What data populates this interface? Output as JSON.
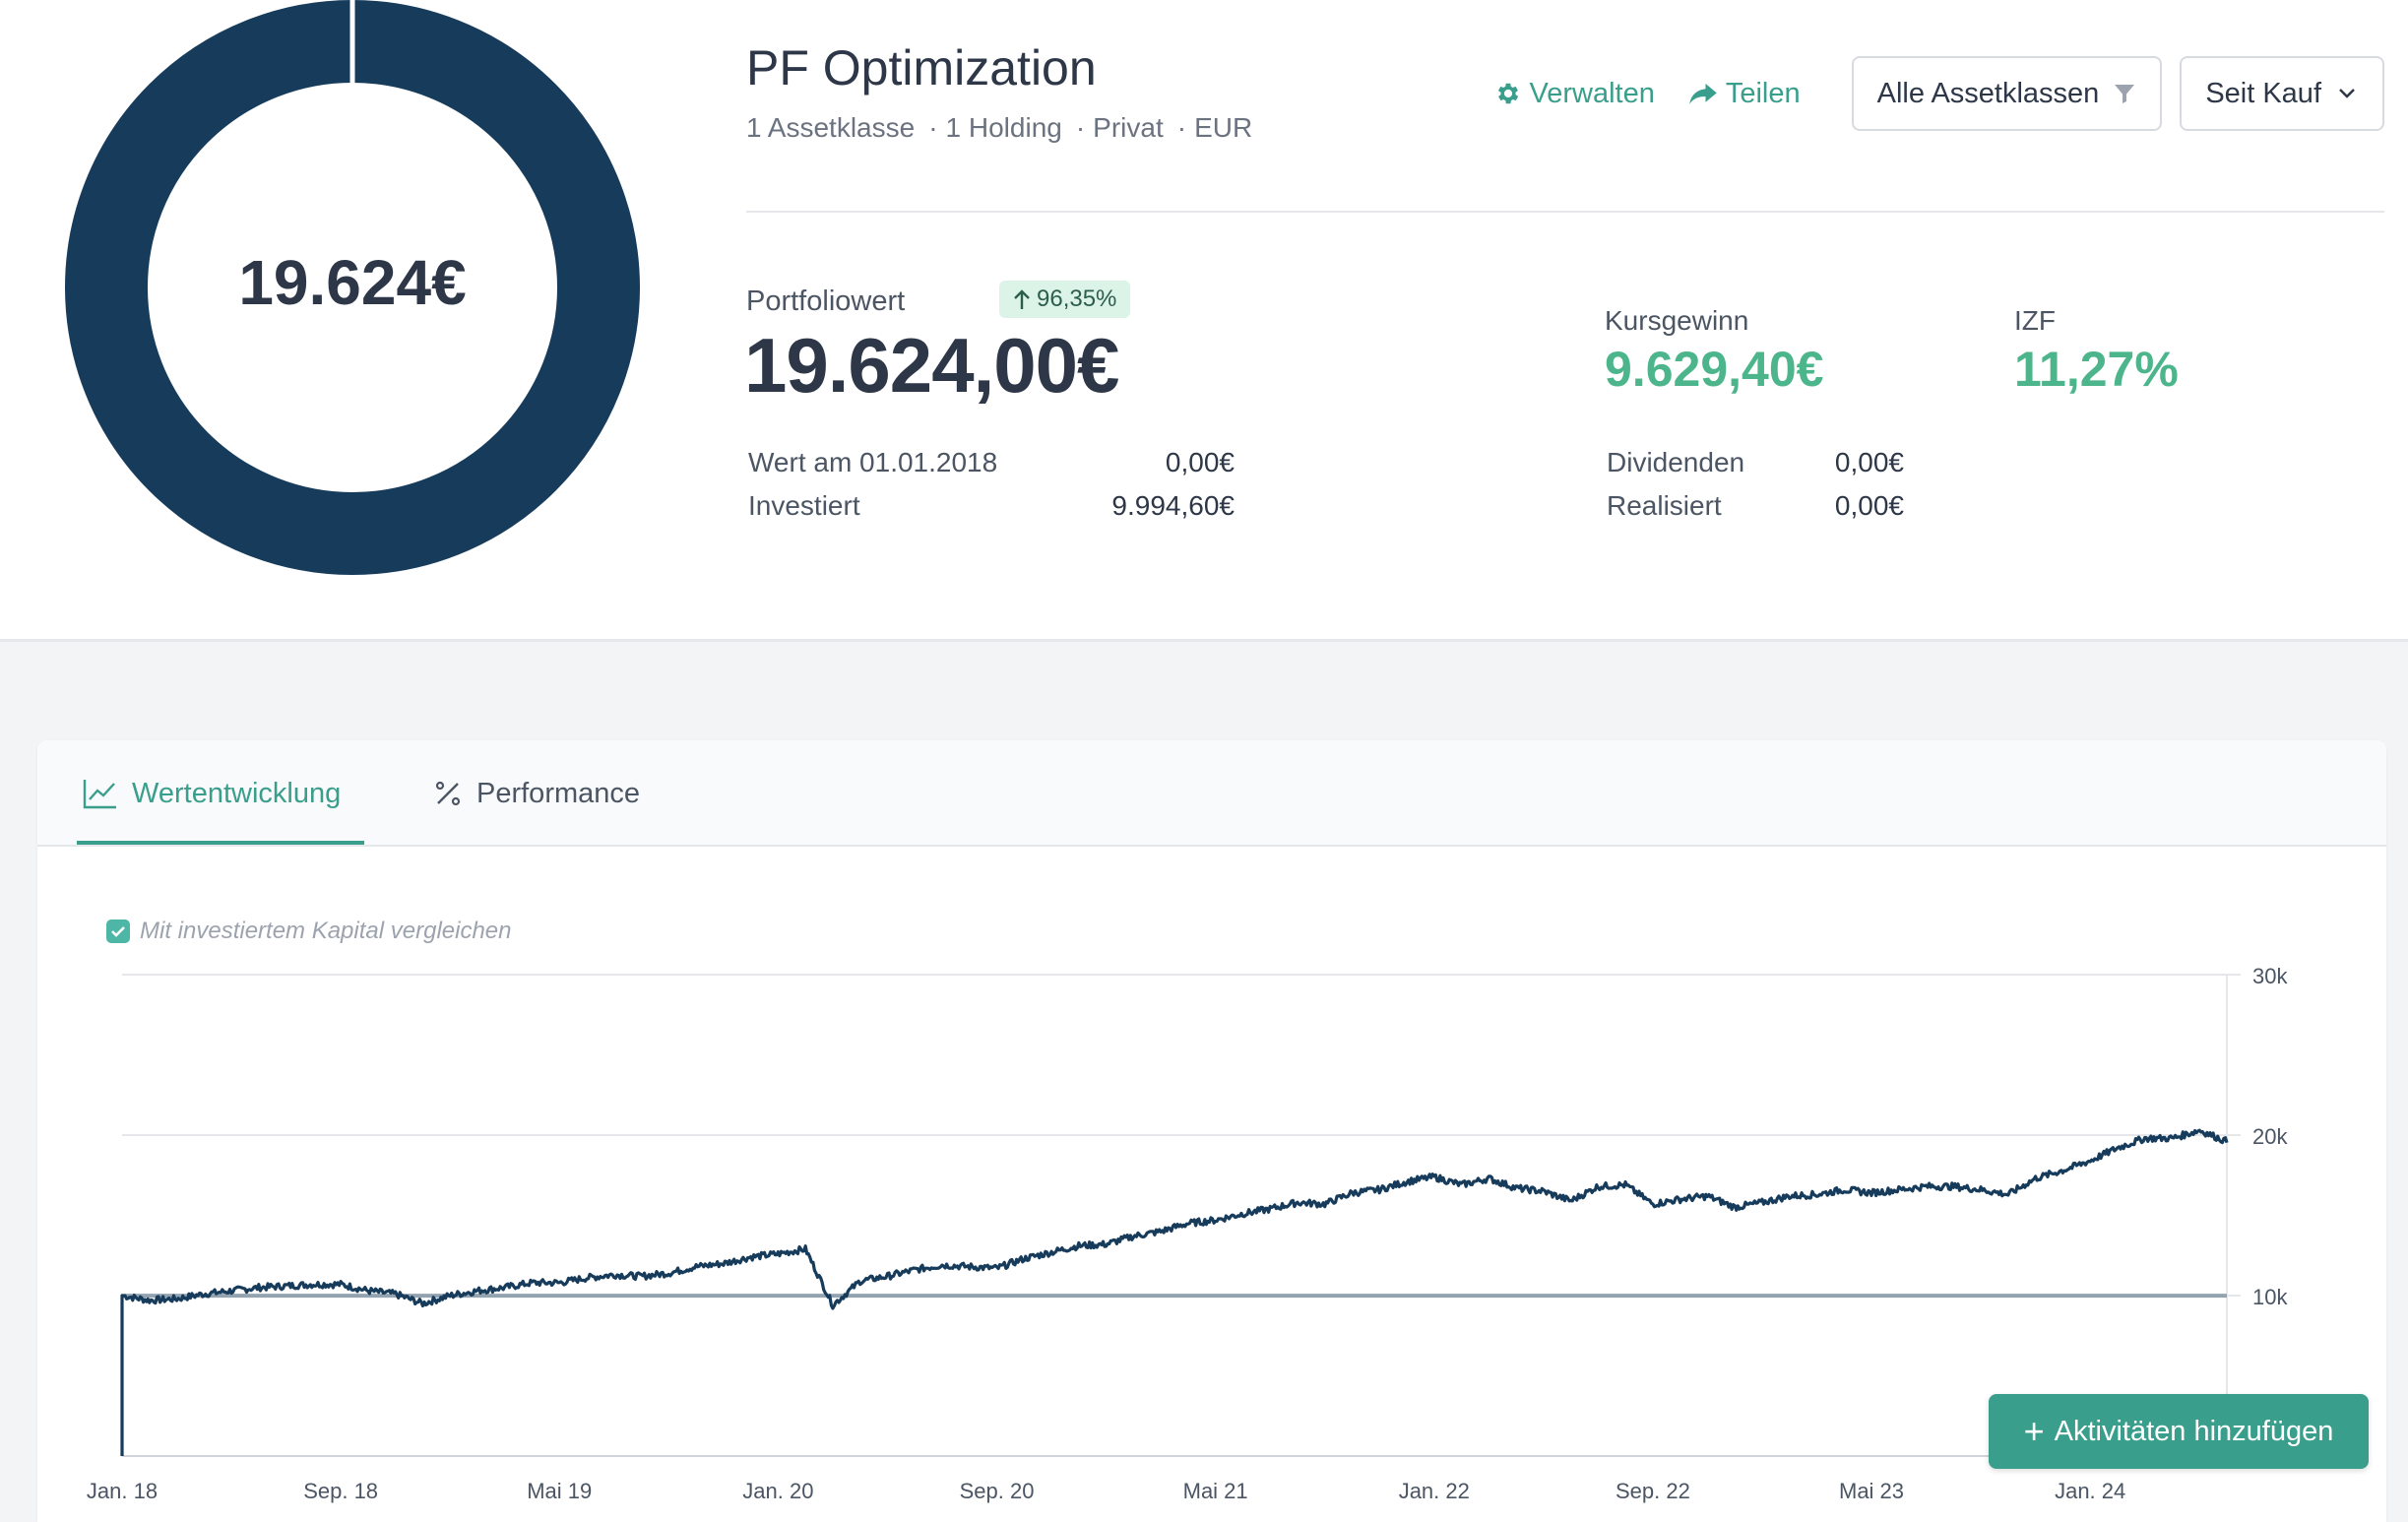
{
  "header": {
    "donut_center": "19.624€",
    "donut_color": "#173b5b",
    "title": "PF Optimization",
    "subtitle": [
      "1 Assetklasse",
      "1 Holding",
      "Privat",
      "EUR"
    ],
    "separator": "·"
  },
  "actions": {
    "manage_label": "Verwalten",
    "share_label": "Teilen",
    "asset_filter_label": "Alle Assetklassen",
    "period_label": "Seit Kauf"
  },
  "summary": {
    "portfolio_label": "Portfoliowert",
    "portfolio_change": "96,35%",
    "portfolio_value": "19.624,00€",
    "start_label": "Wert am 01.01.2018",
    "start_value": "0,00€",
    "invested_label": "Investiert",
    "invested_value": "9.994,60€",
    "gain_label": "Kursgewinn",
    "gain_value": "9.629,40€",
    "irr_label": "IZF",
    "irr_value": "11,27%",
    "dividends_label": "Dividenden",
    "dividends_value": "0,00€",
    "realized_label": "Realisiert",
    "realized_value": "0,00€"
  },
  "tabs": [
    {
      "label": "Wertentwicklung",
      "active": true
    },
    {
      "label": "Performance",
      "active": false
    }
  ],
  "chart_options": {
    "compare_label": "Mit investiertem Kapital vergleichen",
    "compare_checked": true
  },
  "add_button_label": "Aktivitäten hinzufügen",
  "chart_data": {
    "type": "line",
    "x_ticks": [
      "Jan. 18",
      "Sep. 18",
      "Mai 19",
      "Jan. 20",
      "Sep. 20",
      "Mai 21",
      "Jan. 22",
      "Sep. 22",
      "Mai 23",
      "Jan. 24"
    ],
    "y_ticks": [
      "30k",
      "20k",
      "10k"
    ],
    "ylim": [
      0,
      30000
    ],
    "xlim": [
      "2018-01",
      "2024-06"
    ],
    "grid": true,
    "series": [
      {
        "color": "#173b5b",
        "x": [
          "2018-01",
          "2018-02",
          "2018-03",
          "2018-04",
          "2018-05",
          "2018-06",
          "2018-07",
          "2018-08",
          "2018-09",
          "2018-10",
          "2018-11",
          "2018-12",
          "2019-01",
          "2019-02",
          "2019-03",
          "2019-04",
          "2019-05",
          "2019-06",
          "2019-07",
          "2019-08",
          "2019-09",
          "2019-10",
          "2019-11",
          "2019-12",
          "2020-01",
          "2020-02",
          "2020-03",
          "2020-04",
          "2020-05",
          "2020-06",
          "2020-07",
          "2020-08",
          "2020-09",
          "2020-10",
          "2020-11",
          "2020-12",
          "2021-01",
          "2021-02",
          "2021-03",
          "2021-04",
          "2021-05",
          "2021-06",
          "2021-07",
          "2021-08",
          "2021-09",
          "2021-10",
          "2021-11",
          "2021-12",
          "2022-01",
          "2022-02",
          "2022-03",
          "2022-04",
          "2022-05",
          "2022-06",
          "2022-07",
          "2022-08",
          "2022-09",
          "2022-10",
          "2022-11",
          "2022-12",
          "2023-01",
          "2023-02",
          "2023-03",
          "2023-04",
          "2023-05",
          "2023-06",
          "2023-07",
          "2023-08",
          "2023-09",
          "2023-10",
          "2023-11",
          "2023-12",
          "2024-01",
          "2024-02",
          "2024-03",
          "2024-04",
          "2024-05",
          "2024-06"
        ],
        "y": [
          10000,
          9700,
          9800,
          10100,
          10300,
          10500,
          10600,
          10700,
          10700,
          10300,
          10100,
          9500,
          10000,
          10300,
          10500,
          10800,
          10800,
          11100,
          11300,
          11200,
          11400,
          11800,
          12000,
          12400,
          12600,
          12900,
          9400,
          10900,
          11200,
          11600,
          11900,
          11800,
          11700,
          12300,
          12700,
          13100,
          13200,
          13700,
          14000,
          14500,
          14700,
          15100,
          15400,
          15800,
          15700,
          16400,
          16600,
          17100,
          17400,
          16900,
          17300,
          16700,
          16500,
          15900,
          16800,
          16900,
          15700,
          16000,
          16200,
          15500,
          15800,
          16200,
          16300,
          16600,
          16400,
          16600,
          16800,
          16800,
          16600,
          16300,
          17300,
          17800,
          18400,
          19200,
          19800,
          19800,
          20300,
          19600
        ]
      },
      {
        "color": "#94a3b0",
        "x": [
          "2018-01",
          "2024-06"
        ],
        "y": [
          9995,
          9995
        ]
      }
    ]
  }
}
